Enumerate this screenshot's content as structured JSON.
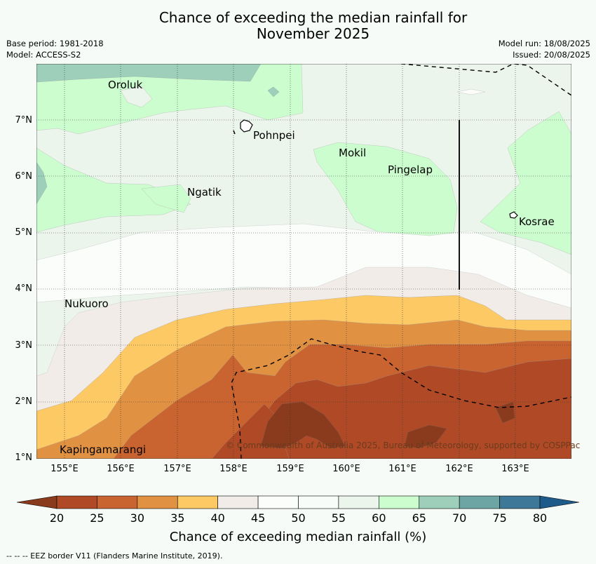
{
  "title": {
    "line1": "Chance of exceeding the median rainfall for",
    "line2": "November 2025"
  },
  "meta": {
    "base_period": "Base period: 1981-2018",
    "model": "Model: ACCESS-S2",
    "model_run": "Model run: 18/08/2025",
    "issued": "Issued: 20/08/2025"
  },
  "map": {
    "lat_labels": [
      "7°N",
      "6°N",
      "5°N",
      "4°N",
      "3°N",
      "2°N",
      "1°N"
    ],
    "lon_labels": [
      "155°E",
      "156°E",
      "157°E",
      "158°E",
      "159°E",
      "160°E",
      "161°E",
      "162°E",
      "163°E"
    ],
    "places": [
      "Oroluk",
      "Pohnpei",
      "Mokil",
      "Pingelap",
      "Ngatik",
      "Kosrae",
      "Nukuoro",
      "Kapingamarangi"
    ],
    "credit": "© Commonwealth of Australia 2025, Bureau of Meteorology, supported by COSPPac"
  },
  "colorbar": {
    "title": "Chance of exceeding median rainfall (%)",
    "ticks": [
      "20",
      "25",
      "30",
      "35",
      "40",
      "45",
      "50",
      "55",
      "60",
      "65",
      "70",
      "75",
      "80"
    ],
    "colors": [
      "#b04a26",
      "#c9632f",
      "#e09142",
      "#fdc965",
      "#f1ece7",
      "#fbfdfb",
      "#f7fcf8",
      "#ecf5ec",
      "#ccfdce",
      "#9dcfbb",
      "#6da5a4",
      "#3e7898"
    ],
    "under_color": "#8a3a1d",
    "over_color": "#1e5a8a"
  },
  "footer": "--  --  -- EEZ border V11 (Flanders Marine Institute, 2019)."
}
